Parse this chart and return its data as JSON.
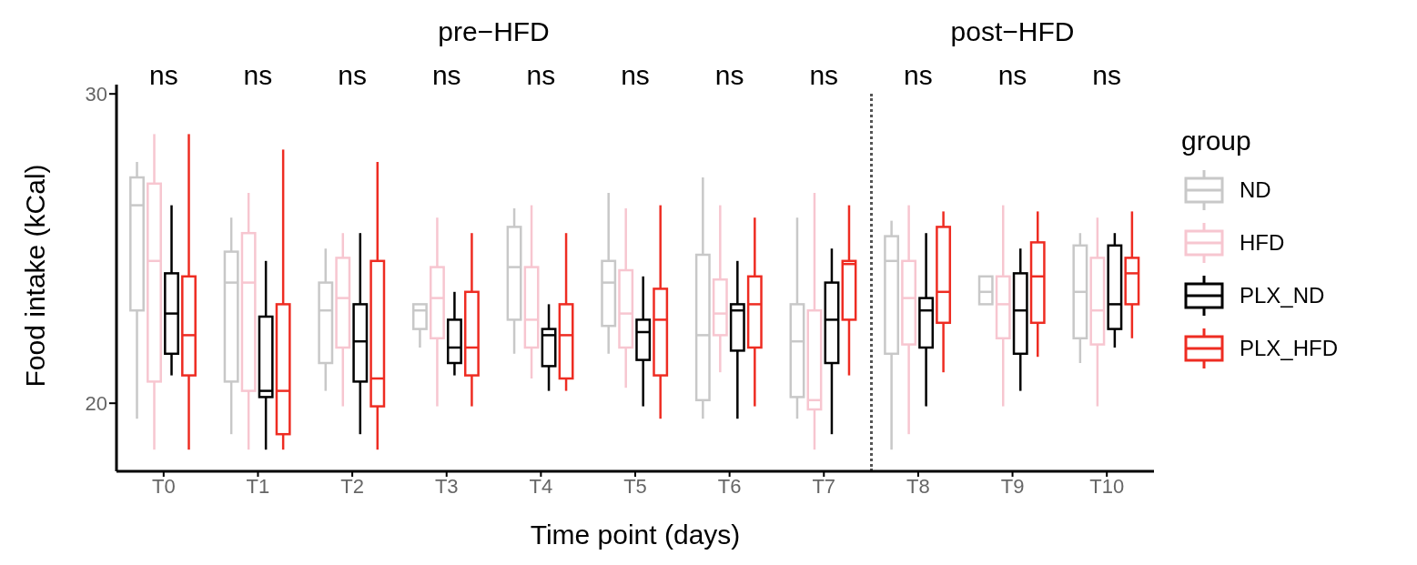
{
  "chart_data": {
    "type": "box",
    "xlabel": "Time point (days)",
    "ylabel": "Food intake (kCal)",
    "legend_title": "group",
    "legend": "right",
    "categories": [
      "T0",
      "T1",
      "T2",
      "T3",
      "T4",
      "T5",
      "T6",
      "T7",
      "T8",
      "T9",
      "T10"
    ],
    "ylim": [
      17.8,
      30.3
    ],
    "yticks": [
      20,
      30
    ],
    "annotations": [
      "pre−HFD",
      "post−HFD",
      "ns",
      "ns",
      "ns",
      "ns",
      "ns",
      "ns",
      "ns",
      "ns",
      "ns",
      "ns",
      "ns"
    ],
    "series": [
      {
        "name": "ND",
        "color": "#c8c8c8",
        "boxes": [
          {
            "low": 19.5,
            "q1": 23.0,
            "median": 26.4,
            "q3": 27.3,
            "high": 27.8
          },
          {
            "low": 19.0,
            "q1": 20.7,
            "median": 23.9,
            "q3": 24.9,
            "high": 26.0
          },
          {
            "low": 20.4,
            "q1": 21.3,
            "median": 23.0,
            "q3": 23.9,
            "high": 25.0
          },
          {
            "low": 21.8,
            "q1": 22.4,
            "median": 23.0,
            "q3": 23.2,
            "high": 23.2
          },
          {
            "low": 21.6,
            "q1": 22.7,
            "median": 24.4,
            "q3": 25.7,
            "high": 26.3
          },
          {
            "low": 21.6,
            "q1": 22.5,
            "median": 23.9,
            "q3": 24.6,
            "high": 26.8
          },
          {
            "low": 19.5,
            "q1": 20.1,
            "median": 22.2,
            "q3": 24.8,
            "high": 27.3
          },
          {
            "low": 19.5,
            "q1": 20.2,
            "median": 22.0,
            "q3": 23.2,
            "high": 26.0
          },
          {
            "low": 18.5,
            "q1": 21.6,
            "median": 24.6,
            "q3": 25.4,
            "high": 25.9
          },
          {
            "low": 23.2,
            "q1": 23.2,
            "median": 23.6,
            "q3": 24.1,
            "high": 24.1
          },
          {
            "low": 21.3,
            "q1": 22.1,
            "median": 23.6,
            "q3": 25.1,
            "high": 25.5
          }
        ]
      },
      {
        "name": "HFD",
        "color": "#f7c6d0",
        "boxes": [
          {
            "low": 18.5,
            "q1": 20.7,
            "median": 24.6,
            "q3": 27.1,
            "high": 28.7
          },
          {
            "low": 18.5,
            "q1": 20.4,
            "median": 23.9,
            "q3": 25.5,
            "high": 26.8
          },
          {
            "low": 19.9,
            "q1": 21.8,
            "median": 23.4,
            "q3": 24.7,
            "high": 25.5
          },
          {
            "low": 19.9,
            "q1": 22.1,
            "median": 23.4,
            "q3": 24.4,
            "high": 26.0
          },
          {
            "low": 20.8,
            "q1": 21.8,
            "median": 22.7,
            "q3": 24.4,
            "high": 26.4
          },
          {
            "low": 20.5,
            "q1": 21.8,
            "median": 22.9,
            "q3": 24.3,
            "high": 26.3
          },
          {
            "low": 21.0,
            "q1": 22.2,
            "median": 22.9,
            "q3": 24.0,
            "high": 26.4
          },
          {
            "low": 18.5,
            "q1": 19.8,
            "median": 20.1,
            "q3": 23.0,
            "high": 26.8
          },
          {
            "low": 19.0,
            "q1": 21.9,
            "median": 23.4,
            "q3": 24.6,
            "high": 26.4
          },
          {
            "low": 19.9,
            "q1": 22.1,
            "median": 23.2,
            "q3": 24.1,
            "high": 26.4
          },
          {
            "low": 19.9,
            "q1": 21.9,
            "median": 23.0,
            "q3": 24.7,
            "high": 26.0
          }
        ]
      },
      {
        "name": "PLX_ND",
        "color": "#000000",
        "boxes": [
          {
            "low": 20.9,
            "q1": 21.6,
            "median": 22.9,
            "q3": 24.2,
            "high": 26.4
          },
          {
            "low": 18.5,
            "q1": 20.2,
            "median": 20.4,
            "q3": 22.8,
            "high": 24.6
          },
          {
            "low": 19.0,
            "q1": 20.7,
            "median": 22.0,
            "q3": 23.2,
            "high": 25.5
          },
          {
            "low": 20.9,
            "q1": 21.3,
            "median": 21.8,
            "q3": 22.7,
            "high": 23.6
          },
          {
            "low": 20.4,
            "q1": 21.2,
            "median": 22.2,
            "q3": 22.4,
            "high": 23.2
          },
          {
            "low": 19.9,
            "q1": 21.4,
            "median": 22.3,
            "q3": 22.7,
            "high": 24.1
          },
          {
            "low": 19.5,
            "q1": 21.7,
            "median": 23.0,
            "q3": 23.2,
            "high": 24.6
          },
          {
            "low": 19.0,
            "q1": 21.3,
            "median": 22.7,
            "q3": 23.9,
            "high": 25.0
          },
          {
            "low": 19.9,
            "q1": 21.8,
            "median": 23.0,
            "q3": 23.4,
            "high": 25.5
          },
          {
            "low": 20.4,
            "q1": 21.6,
            "median": 23.0,
            "q3": 24.2,
            "high": 25.0
          },
          {
            "low": 21.8,
            "q1": 22.4,
            "median": 23.2,
            "q3": 25.1,
            "high": 25.5
          }
        ]
      },
      {
        "name": "PLX_HFD",
        "color": "#ee2c22",
        "boxes": [
          {
            "low": 18.5,
            "q1": 20.9,
            "median": 22.2,
            "q3": 24.1,
            "high": 28.7
          },
          {
            "low": 18.5,
            "q1": 19.0,
            "median": 20.4,
            "q3": 23.2,
            "high": 28.2
          },
          {
            "low": 18.5,
            "q1": 19.9,
            "median": 20.8,
            "q3": 24.6,
            "high": 27.8
          },
          {
            "low": 19.9,
            "q1": 20.9,
            "median": 21.8,
            "q3": 23.6,
            "high": 25.5
          },
          {
            "low": 20.4,
            "q1": 20.8,
            "median": 22.2,
            "q3": 23.2,
            "high": 25.5
          },
          {
            "low": 19.5,
            "q1": 20.9,
            "median": 22.7,
            "q3": 23.7,
            "high": 26.4
          },
          {
            "low": 19.9,
            "q1": 21.8,
            "median": 23.2,
            "q3": 24.1,
            "high": 26.0
          },
          {
            "low": 20.9,
            "q1": 22.7,
            "median": 24.5,
            "q3": 24.6,
            "high": 26.4
          },
          {
            "low": 21.0,
            "q1": 22.6,
            "median": 23.6,
            "q3": 25.7,
            "high": 26.2
          },
          {
            "low": 21.5,
            "q1": 22.6,
            "median": 24.1,
            "q3": 25.2,
            "high": 26.2
          },
          {
            "low": 22.1,
            "q1": 23.2,
            "median": 24.2,
            "q3": 24.7,
            "high": 26.2
          }
        ]
      }
    ]
  }
}
